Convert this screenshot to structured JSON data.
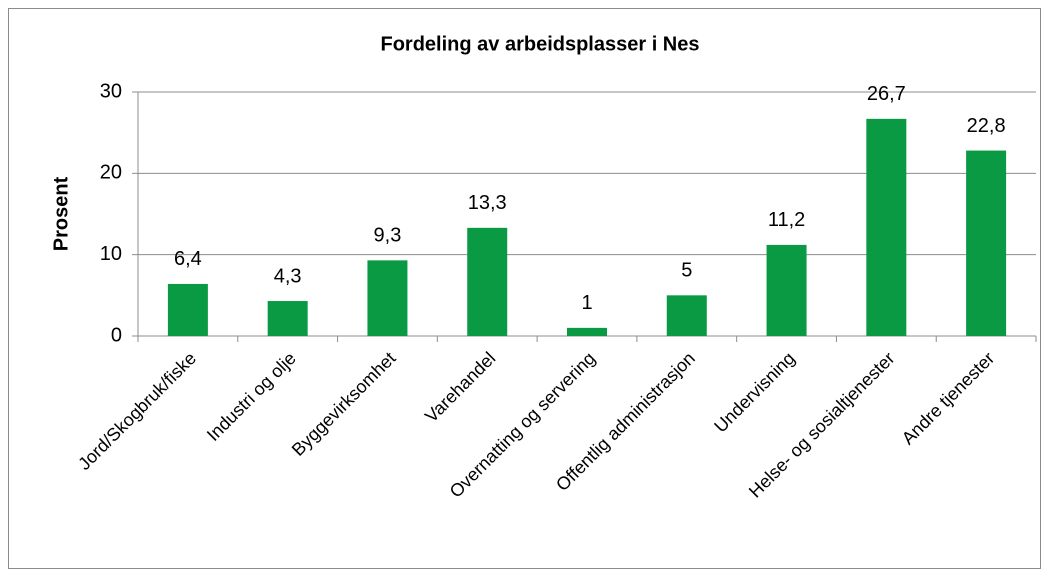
{
  "chart_data": {
    "type": "bar",
    "title": "Fordeling av arbeidsplasser i Nes",
    "y_label": "Prosent",
    "categories": [
      "Jord/Skogbruk/fiske",
      "Industri og olje",
      "Byggevirksomhet",
      "Varehandel",
      "Overnatting og servering",
      "Offentlig administrasjon",
      "Undervisning",
      "Helse- og sosialtjenester",
      "Andre tjenester"
    ],
    "values": [
      6.4,
      4.3,
      9.3,
      13.3,
      1,
      5,
      11.2,
      26.7,
      22.8
    ],
    "value_labels": [
      "6,4",
      "4,3",
      "9,3",
      "13,3",
      "1",
      "5",
      "11,2",
      "26,7",
      "22,8"
    ],
    "color": "#0a9a44",
    "ylim": [
      0,
      30
    ],
    "yticks": [
      0,
      10,
      20,
      30
    ],
    "grid": true
  }
}
